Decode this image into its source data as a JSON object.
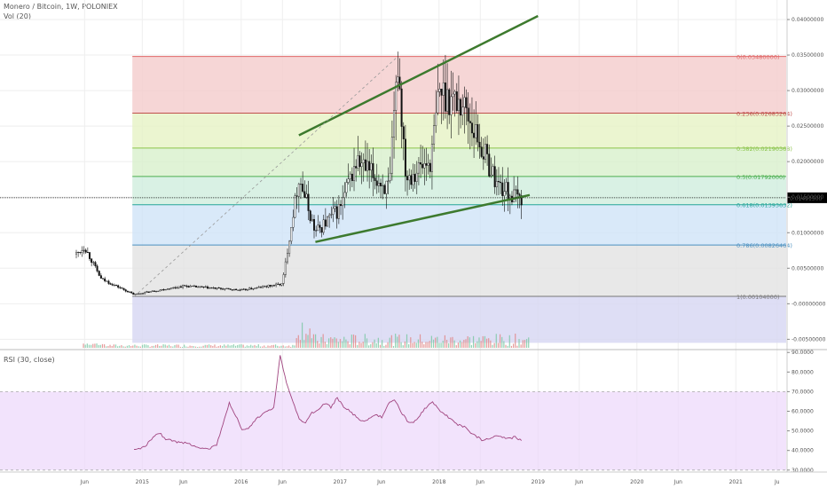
{
  "header": {
    "symbol_line": "Monero / Bitcoin, 1W, POLONIEX",
    "volume_label": "Vol (20)",
    "rsi_label": "RSI (30, close)"
  },
  "price_tag": "0.01491500",
  "colors": {
    "up": "#53b987",
    "down": "#111111",
    "trendline": "#3d7a2e",
    "rsi_line": "#a0447f",
    "rsi_band": "#ecd7fb",
    "price_tag_bg": "#000000"
  },
  "chart_data": [
    {
      "type": "candlestick",
      "title": "Monero / Bitcoin, 1W, POLONIEX",
      "y_axis": {
        "ticks": [
          "0.04000000",
          "0.03500000",
          "0.03000000",
          "0.02500000",
          "0.02000000",
          "0.01500000",
          "0.01000000",
          "0.00500000",
          "-0.00000000",
          "-0.00500000"
        ],
        "range": [
          -0.0062,
          0.042
        ]
      },
      "x_axis": {
        "ticks": [
          "Jun",
          "2015",
          "Jun",
          "2016",
          "Jun",
          "2017",
          "Jun",
          "2018",
          "Jun",
          "2019",
          "Jun",
          "2020",
          "Jun",
          "2021",
          "Ju"
        ]
      },
      "approx_close_path": [
        [
          "2014-05",
          0.007
        ],
        [
          "2014-06",
          0.008
        ],
        [
          "2014-08",
          0.0035
        ],
        [
          "2014-12",
          0.0013
        ],
        [
          "2015-06",
          0.0025
        ],
        [
          "2016-01",
          0.0019
        ],
        [
          "2016-06",
          0.0028
        ],
        [
          "2016-08",
          0.018
        ],
        [
          "2016-10",
          0.01
        ],
        [
          "2017-01",
          0.0135
        ],
        [
          "2017-03",
          0.02
        ],
        [
          "2017-07",
          0.016
        ],
        [
          "2017-08",
          0.034
        ],
        [
          "2017-09",
          0.018
        ],
        [
          "2017-12",
          0.02
        ],
        [
          "2018-01",
          0.03
        ],
        [
          "2018-04",
          0.028
        ],
        [
          "2018-08",
          0.017
        ],
        [
          "2018-10",
          0.015
        ],
        [
          "2018-11",
          0.0149
        ]
      ],
      "current_price": 0.014915,
      "fibonacci": [
        {
          "label": "0(0.03480000)",
          "level": 0.0348,
          "color": "#e06666",
          "fill": "#f4cccc"
        },
        {
          "label": "0.236(0.02683264)",
          "level": 0.02683264,
          "color": "#c0504d",
          "fill": "#e6f2c4"
        },
        {
          "label": "0.382(0.02190368)",
          "level": 0.02190368,
          "color": "#8bc34a",
          "fill": "#d8f0cc"
        },
        {
          "label": "0.5(0.01792000)",
          "level": 0.01792,
          "color": "#4caf50",
          "fill": "#cfeedd"
        },
        {
          "label": "0.618(0.01393632)",
          "level": 0.01393632,
          "color": "#26a69a",
          "fill": "#cfe3f7"
        },
        {
          "label": "0.786(0.00826464)",
          "level": 0.00826464,
          "color": "#4a90c0",
          "fill": "#e2e2e2"
        },
        {
          "label": "1(0.00104000)",
          "level": 0.00104,
          "color": "#777777",
          "fill": "#d6d6f2"
        }
      ],
      "trendlines": [
        {
          "from": [
            "2016-08",
            0.0237
          ],
          "to": [
            "2019-01",
            0.0405
          ]
        },
        {
          "from": [
            "2016-10",
            0.0087
          ],
          "to": [
            "2018-12",
            0.0153
          ]
        },
        {
          "from": [
            "2014-12",
            0.001
          ],
          "to": [
            "2017-08",
            0.0348
          ],
          "style": "dashed"
        }
      ]
    },
    {
      "type": "line",
      "title": "RSI (30, close)",
      "y_axis": {
        "ticks": [
          "90.0000",
          "80.0000",
          "70.0000",
          "60.0000",
          "50.0000",
          "40.0000",
          "30.0000"
        ],
        "range": [
          29,
          91
        ]
      },
      "bands": [
        30,
        70
      ],
      "x_range": [
        "2014-12",
        "2018-11"
      ],
      "values": [
        40,
        41,
        43,
        47,
        49,
        46,
        45,
        44,
        44,
        43,
        42,
        41,
        41,
        43,
        53,
        64,
        58,
        50,
        51,
        55,
        58,
        60,
        62,
        88,
        75,
        65,
        56,
        54,
        59,
        61,
        64,
        62,
        67,
        62,
        60,
        57,
        55,
        56,
        58,
        57,
        64,
        66,
        60,
        55,
        54,
        58,
        62,
        65,
        61,
        58,
        56,
        53,
        52,
        49,
        47,
        45,
        46,
        48,
        47,
        46,
        47,
        45
      ]
    }
  ]
}
